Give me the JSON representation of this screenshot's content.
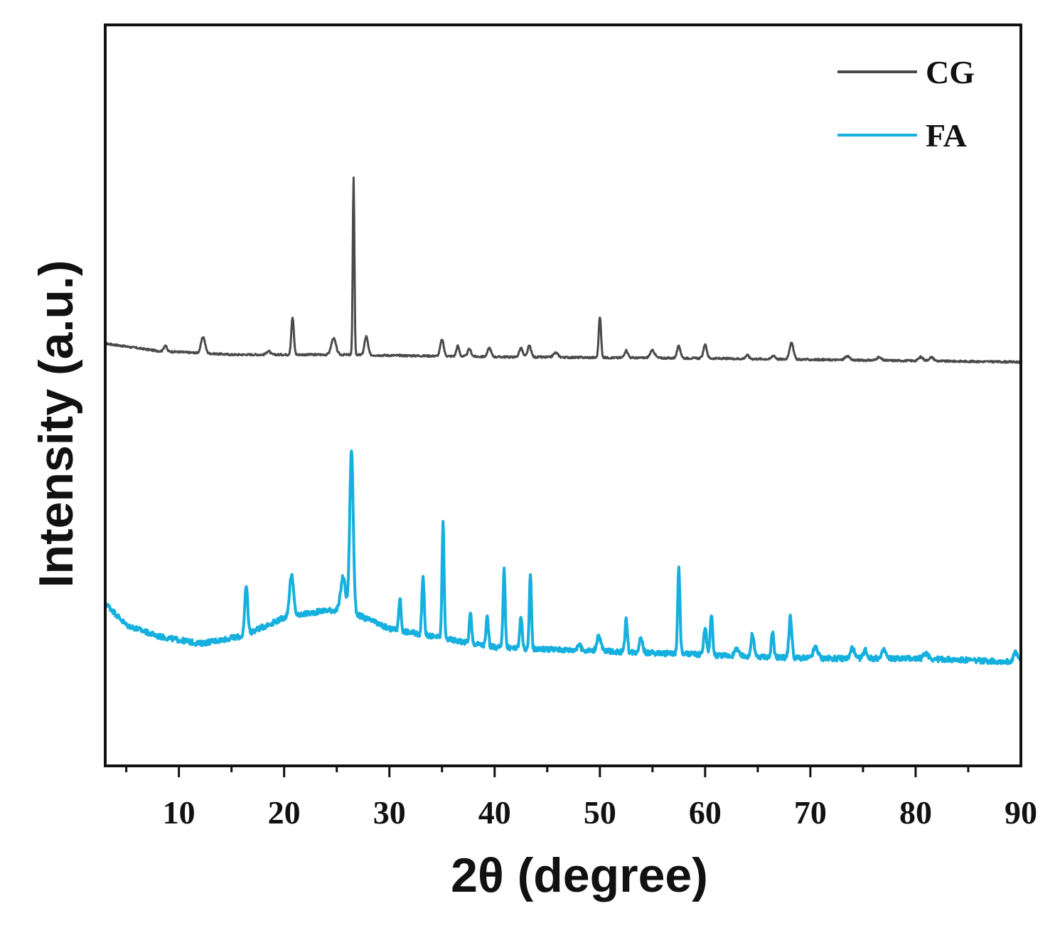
{
  "chart_data": {
    "type": "line",
    "xlabel": "2θ (degree)",
    "ylabel": "Intensity (a.u.)",
    "xlim": [
      3,
      90
    ],
    "ylim": [
      0,
      10
    ],
    "y_ticks_shown": false,
    "grid": false,
    "legend": "top-right",
    "x_ticks": [
      "10",
      "20",
      "30",
      "40",
      "50",
      "60",
      "70",
      "80",
      "90"
    ],
    "x_tick_values": [
      10,
      20,
      30,
      40,
      50,
      60,
      70,
      80,
      90
    ],
    "series": [
      {
        "name": "CG",
        "color": "#4a4a4a",
        "baseline": [
          [
            3,
            5.7
          ],
          [
            8,
            5.6
          ],
          [
            15,
            5.55
          ],
          [
            25,
            5.55
          ],
          [
            40,
            5.52
          ],
          [
            60,
            5.5
          ],
          [
            90,
            5.45
          ]
        ],
        "peaks": [
          [
            8.7,
            0.08,
            0.25
          ],
          [
            12.3,
            0.22,
            0.35
          ],
          [
            18.5,
            0.05,
            0.3
          ],
          [
            20.8,
            0.5,
            0.22
          ],
          [
            24.7,
            0.22,
            0.4
          ],
          [
            26.6,
            2.4,
            0.14
          ],
          [
            27.8,
            0.25,
            0.3
          ],
          [
            35.0,
            0.22,
            0.3
          ],
          [
            36.5,
            0.14,
            0.25
          ],
          [
            37.6,
            0.1,
            0.3
          ],
          [
            39.5,
            0.12,
            0.3
          ],
          [
            42.5,
            0.12,
            0.3
          ],
          [
            43.3,
            0.15,
            0.3
          ],
          [
            45.8,
            0.06,
            0.4
          ],
          [
            50.0,
            0.55,
            0.2
          ],
          [
            52.5,
            0.1,
            0.3
          ],
          [
            55.0,
            0.1,
            0.4
          ],
          [
            57.5,
            0.16,
            0.3
          ],
          [
            60.0,
            0.18,
            0.3
          ],
          [
            64.0,
            0.05,
            0.3
          ],
          [
            66.5,
            0.05,
            0.3
          ],
          [
            68.2,
            0.22,
            0.35
          ],
          [
            73.5,
            0.05,
            0.4
          ],
          [
            76.5,
            0.04,
            0.4
          ],
          [
            80.5,
            0.05,
            0.4
          ],
          [
            81.5,
            0.05,
            0.4
          ]
        ]
      },
      {
        "name": "FA",
        "color": "#16b0de",
        "baseline": [
          [
            3,
            2.2
          ],
          [
            5,
            1.9
          ],
          [
            8,
            1.75
          ],
          [
            12,
            1.65
          ],
          [
            16,
            1.75
          ],
          [
            20,
            2.0
          ],
          [
            24,
            2.1
          ],
          [
            26,
            2.1
          ],
          [
            30,
            1.85
          ],
          [
            40,
            1.6
          ],
          [
            50,
            1.55
          ],
          [
            60,
            1.5
          ],
          [
            70,
            1.45
          ],
          [
            80,
            1.45
          ],
          [
            90,
            1.4
          ]
        ],
        "peaks": [
          [
            16.4,
            0.65,
            0.25
          ],
          [
            20.7,
            0.55,
            0.35
          ],
          [
            25.6,
            0.45,
            0.4
          ],
          [
            26.4,
            2.2,
            0.3
          ],
          [
            31.0,
            0.45,
            0.2
          ],
          [
            33.2,
            0.8,
            0.2
          ],
          [
            35.1,
            1.55,
            0.18
          ],
          [
            37.7,
            0.4,
            0.2
          ],
          [
            39.3,
            0.4,
            0.2
          ],
          [
            40.9,
            1.1,
            0.18
          ],
          [
            42.5,
            0.45,
            0.2
          ],
          [
            43.4,
            1.0,
            0.18
          ],
          [
            48.0,
            0.08,
            0.3
          ],
          [
            49.9,
            0.2,
            0.35
          ],
          [
            52.5,
            0.45,
            0.2
          ],
          [
            53.9,
            0.2,
            0.3
          ],
          [
            57.5,
            1.15,
            0.2
          ],
          [
            60.0,
            0.35,
            0.25
          ],
          [
            60.6,
            0.55,
            0.2
          ],
          [
            63.0,
            0.1,
            0.3
          ],
          [
            64.5,
            0.3,
            0.25
          ],
          [
            66.4,
            0.35,
            0.2
          ],
          [
            68.1,
            0.55,
            0.25
          ],
          [
            70.5,
            0.15,
            0.4
          ],
          [
            74.0,
            0.15,
            0.3
          ],
          [
            75.2,
            0.12,
            0.3
          ],
          [
            77.0,
            0.12,
            0.3
          ],
          [
            81.0,
            0.08,
            0.4
          ],
          [
            89.5,
            0.12,
            0.4
          ]
        ]
      }
    ]
  }
}
